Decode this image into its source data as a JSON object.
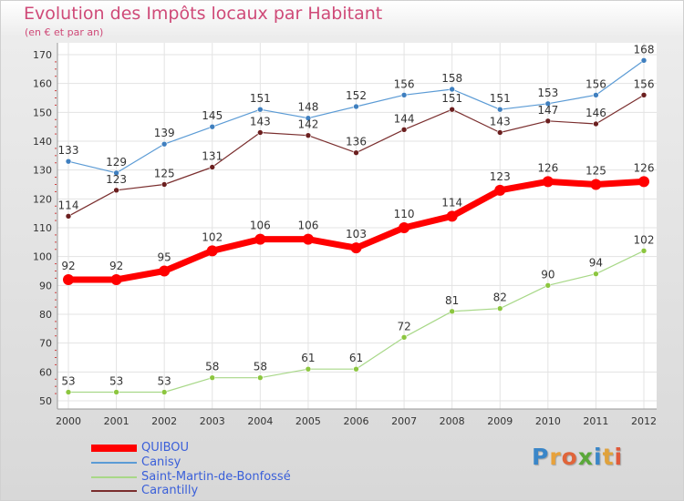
{
  "chart_data": {
    "type": "line",
    "title": "Evolution des Impôts locaux par Habitant",
    "subtitle": "(en € et par an)",
    "categories": [
      "2000",
      "2001",
      "2002",
      "2003",
      "2004",
      "2005",
      "2006",
      "2007",
      "2008",
      "2009",
      "2010",
      "2011",
      "2012"
    ],
    "ylim": [
      50,
      170
    ],
    "yticks": [
      50,
      60,
      70,
      80,
      90,
      100,
      110,
      120,
      130,
      140,
      150,
      160,
      170
    ],
    "grid": true,
    "legend_position": "bottom-left",
    "series": [
      {
        "name": "Canisy",
        "color": "#5b9bd5",
        "marker": "#3f7fbf",
        "width": 1.2,
        "values": [
          133,
          129,
          139,
          145,
          151,
          148,
          152,
          156,
          158,
          151,
          153,
          156,
          168
        ]
      },
      {
        "name": "Carantilly",
        "color": "#7a2e2e",
        "marker": "#6b1f1f",
        "width": 1.2,
        "values": [
          114,
          123,
          125,
          131,
          143,
          142,
          136,
          144,
          151,
          143,
          147,
          146,
          156
        ]
      },
      {
        "name": "QUIBOU",
        "color": "#ff0000",
        "marker": "#ff0000",
        "width": 7,
        "values": [
          92,
          92,
          95,
          102,
          106,
          106,
          103,
          110,
          114,
          123,
          126,
          125,
          126
        ]
      },
      {
        "name": "Saint-Martin-de-Bonfossé",
        "color": "#a8d888",
        "marker": "#8cc63f",
        "width": 1.2,
        "values": [
          53,
          53,
          53,
          58,
          58,
          61,
          61,
          72,
          81,
          82,
          90,
          94,
          102
        ]
      }
    ],
    "legend": [
      {
        "name": "QUIBOU",
        "color": "#ff0000"
      },
      {
        "name": "Canisy",
        "color": "#5b9bd5"
      },
      {
        "name": "Saint-Martin-de-Bonfossé",
        "color": "#a8d888"
      },
      {
        "name": "Carantilly",
        "color": "#7a2e2e"
      }
    ]
  },
  "logo": {
    "text": "Proxiti",
    "letters": [
      {
        "ch": "P",
        "color": "#3a86c8"
      },
      {
        "ch": "r",
        "color": "#e8a23b"
      },
      {
        "ch": "o",
        "color": "#e0653a"
      },
      {
        "ch": "x",
        "color": "#5aa83a"
      },
      {
        "ch": "i",
        "color": "#3a86c8"
      },
      {
        "ch": "t",
        "color": "#e0a23b"
      },
      {
        "ch": "i",
        "color": "#e05a3a"
      }
    ]
  }
}
